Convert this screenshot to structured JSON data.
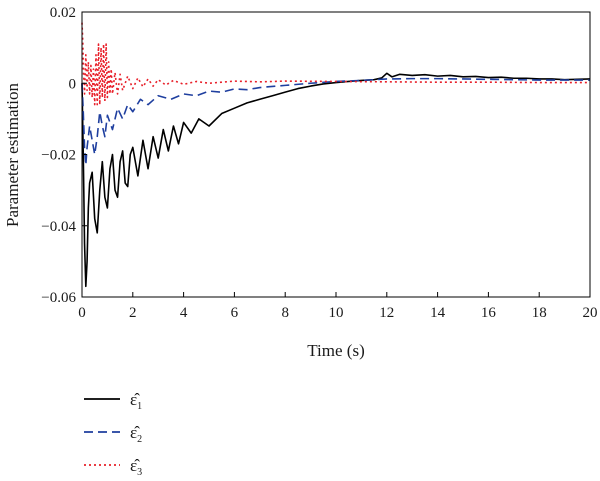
{
  "chart_data": {
    "type": "line",
    "title": "",
    "xlabel": "Time (s)",
    "ylabel": "Parameter estimation",
    "xlim": [
      0,
      20
    ],
    "ylim": [
      -0.06,
      0.02
    ],
    "xticks": [
      0,
      2,
      4,
      6,
      8,
      10,
      12,
      14,
      16,
      18,
      20
    ],
    "yticks": [
      -0.06,
      -0.04,
      -0.02,
      0,
      0.02
    ],
    "xtick_labels": [
      "0",
      "2",
      "4",
      "6",
      "8",
      "10",
      "12",
      "14",
      "16",
      "18",
      "20"
    ],
    "ytick_labels": [
      "−0.06",
      "−0.04",
      "−0.02",
      "0",
      "0.02"
    ],
    "grid": false,
    "legend_position": "below-left",
    "series": [
      {
        "name": "ε̂1",
        "symbol": "ε̂",
        "subscript": "1",
        "color": "#000000",
        "style": "solid",
        "x": [
          0,
          0.05,
          0.1,
          0.15,
          0.2,
          0.25,
          0.3,
          0.4,
          0.5,
          0.6,
          0.7,
          0.8,
          0.9,
          1.0,
          1.1,
          1.2,
          1.3,
          1.4,
          1.5,
          1.6,
          1.7,
          1.8,
          1.9,
          2.0,
          2.2,
          2.4,
          2.6,
          2.8,
          3.0,
          3.2,
          3.4,
          3.6,
          3.8,
          4.0,
          4.3,
          4.6,
          5.0,
          5.5,
          6.0,
          6.5,
          7.0,
          7.5,
          8.0,
          8.5,
          9.0,
          9.5,
          10.0,
          10.5,
          11.0,
          11.5,
          11.8,
          12.0,
          12.2,
          12.5,
          13.0,
          13.5,
          14.0,
          14.5,
          15.0,
          15.5,
          16.0,
          16.5,
          17.0,
          17.5,
          18.0,
          18.5,
          19.0,
          19.5,
          20.0
        ],
        "y": [
          0,
          -0.02,
          -0.045,
          -0.057,
          -0.05,
          -0.035,
          -0.028,
          -0.025,
          -0.038,
          -0.042,
          -0.03,
          -0.022,
          -0.032,
          -0.035,
          -0.024,
          -0.02,
          -0.03,
          -0.032,
          -0.022,
          -0.019,
          -0.028,
          -0.029,
          -0.02,
          -0.018,
          -0.026,
          -0.016,
          -0.024,
          -0.015,
          -0.021,
          -0.013,
          -0.019,
          -0.012,
          -0.017,
          -0.011,
          -0.014,
          -0.01,
          -0.012,
          -0.0085,
          -0.007,
          -0.0055,
          -0.0045,
          -0.0035,
          -0.0025,
          -0.0015,
          -0.0008,
          -0.0002,
          0.0002,
          0.0005,
          0.0008,
          0.001,
          0.0015,
          0.0028,
          0.0018,
          0.0025,
          0.0022,
          0.0024,
          0.002,
          0.0022,
          0.0018,
          0.0019,
          0.0016,
          0.0017,
          0.0014,
          0.0014,
          0.0012,
          0.0012,
          0.001,
          0.0011,
          0.0012
        ]
      },
      {
        "name": "ε̂2",
        "symbol": "ε̂",
        "subscript": "2",
        "color": "#1f3f9f",
        "style": "dashed",
        "x": [
          0,
          0.05,
          0.1,
          0.15,
          0.2,
          0.3,
          0.4,
          0.5,
          0.6,
          0.7,
          0.8,
          0.9,
          1.0,
          1.2,
          1.4,
          1.6,
          1.8,
          2.0,
          2.3,
          2.6,
          3.0,
          3.5,
          4.0,
          4.5,
          5.0,
          5.5,
          6.0,
          6.5,
          7.0,
          8.0,
          9.0,
          10.0,
          11.0,
          12.0,
          13.0,
          14.0,
          15.0,
          16.0,
          17.0,
          18.0,
          19.0,
          20.0
        ],
        "y": [
          0,
          -0.008,
          -0.018,
          -0.023,
          -0.018,
          -0.012,
          -0.016,
          -0.02,
          -0.015,
          -0.008,
          -0.012,
          -0.015,
          -0.009,
          -0.013,
          -0.007,
          -0.01,
          -0.006,
          -0.008,
          -0.0045,
          -0.006,
          -0.0035,
          -0.0045,
          -0.003,
          -0.0035,
          -0.0022,
          -0.0025,
          -0.0016,
          -0.0018,
          -0.0012,
          -0.0006,
          0,
          0.0005,
          0.0008,
          0.0012,
          0.0013,
          0.0013,
          0.0012,
          0.0011,
          0.001,
          0.0009,
          0.0009,
          0.0009
        ]
      },
      {
        "name": "ε̂3",
        "symbol": "ε̂",
        "subscript": "3",
        "color": "#e8202a",
        "style": "dotted",
        "x": [
          0,
          0.03,
          0.06,
          0.1,
          0.15,
          0.2,
          0.25,
          0.3,
          0.35,
          0.4,
          0.45,
          0.5,
          0.55,
          0.6,
          0.65,
          0.7,
          0.75,
          0.8,
          0.85,
          0.9,
          0.95,
          1.0,
          1.05,
          1.1,
          1.15,
          1.2,
          1.3,
          1.4,
          1.5,
          1.6,
          1.8,
          2.0,
          2.2,
          2.4,
          2.6,
          2.8,
          3.0,
          3.3,
          3.6,
          4.0,
          4.5,
          5.0,
          6.0,
          7.0,
          8.0,
          10.0,
          12.0,
          14.0,
          16.0,
          18.0,
          20.0
        ],
        "y": [
          0.017,
          0.012,
          0.003,
          -0.003,
          0.008,
          -0.002,
          0.006,
          -0.003,
          0.005,
          -0.004,
          0.004,
          -0.006,
          0.008,
          -0.006,
          0.011,
          -0.006,
          0.01,
          -0.004,
          0.011,
          -0.005,
          0.011,
          -0.004,
          0.006,
          -0.003,
          0.004,
          -0.003,
          0.003,
          -0.003,
          0.0025,
          -0.002,
          0.002,
          -0.0015,
          0.0015,
          -0.001,
          0.0012,
          -0.0008,
          0.001,
          -0.0005,
          0.0008,
          -0.0003,
          0.0005,
          0,
          0.0006,
          0.0004,
          0.0006,
          0.0005,
          0.0004,
          0.0003,
          0.0003,
          0.0002,
          0.0002
        ]
      }
    ]
  }
}
